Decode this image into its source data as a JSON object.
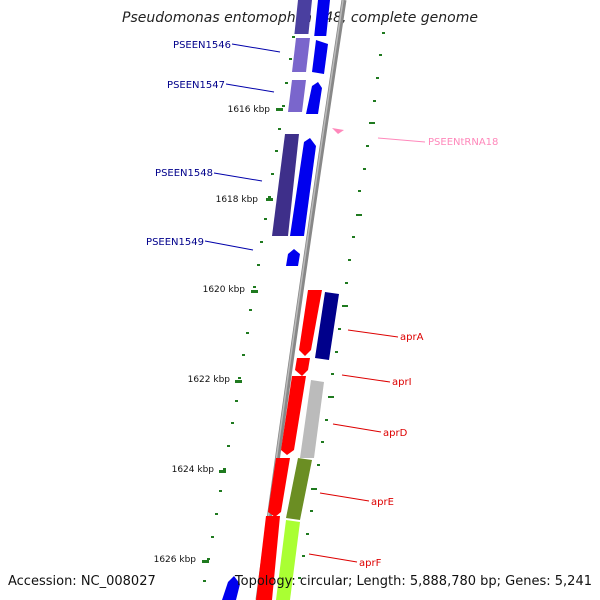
{
  "title": "Pseudomonas entomophila L48, complete genome",
  "accession": "Accession: NC_008027",
  "topology": "Topology: circular; Length: 5,888,780 bp; Genes: 5,241",
  "colors": {
    "backbone": "#888888",
    "tick": "#1f7a1f",
    "forward_feature": "#0000ff",
    "forward_label": "#00008b",
    "trna": "#ff88bb",
    "apr_label": "#dd0000"
  },
  "scale": {
    "ticks": [
      {
        "label": "1616 kbp"
      },
      {
        "label": "1618 kbp"
      },
      {
        "label": "1620 kbp"
      },
      {
        "label": "1622 kbp"
      },
      {
        "label": "1624 kbp"
      },
      {
        "label": "1626 kbp"
      }
    ]
  },
  "gene_labels": [
    {
      "name": "PSEEN1546"
    },
    {
      "name": "PSEEN1547"
    },
    {
      "name": "PSEEN1548"
    },
    {
      "name": "PSEEN1549"
    },
    {
      "name": "PSEENtRNA18"
    },
    {
      "name": "aprA"
    },
    {
      "name": "aprI"
    },
    {
      "name": "aprD"
    },
    {
      "name": "aprE"
    },
    {
      "name": "aprF"
    }
  ]
}
